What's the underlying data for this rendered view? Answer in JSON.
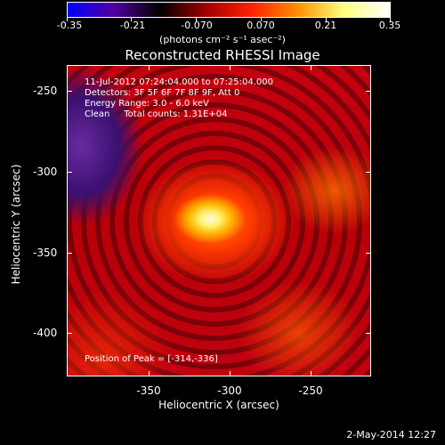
{
  "colorbar": {
    "ticks": [
      "-0.35",
      "-0.21",
      "-0.070",
      "0.070",
      "0.21",
      "0.35"
    ],
    "units": "(photons cm⁻² s⁻¹ asec⁻²)",
    "colors": [
      "#0000ff",
      "#5000a0",
      "#000000",
      "#a00000",
      "#ff2000",
      "#ff9000",
      "#ffff80",
      "#ffffff"
    ]
  },
  "image": {
    "title": "Reconstructed RHESSI Image",
    "info": [
      "11-Jul-2012 07:24:04.000 to 07:25:04.000",
      "Detectors: 3F 5F 6F 7F 8F 9F, Att 0",
      "Energy Range: 3.0 - 6.0 keV",
      "Clean     Total counts: 1.31E+04"
    ],
    "peak": "Position of Peak = [-314,-336]"
  },
  "axes": {
    "xlabel": "Heliocentric X (arcsec)",
    "ylabel": "Heliocentric Y (arcsec)",
    "xticks": [
      "-350",
      "-300",
      "-250"
    ],
    "yticks": [
      "-250",
      "-300",
      "-350",
      "-400"
    ]
  },
  "footer": {
    "date": "2-May-2014 12:27"
  }
}
